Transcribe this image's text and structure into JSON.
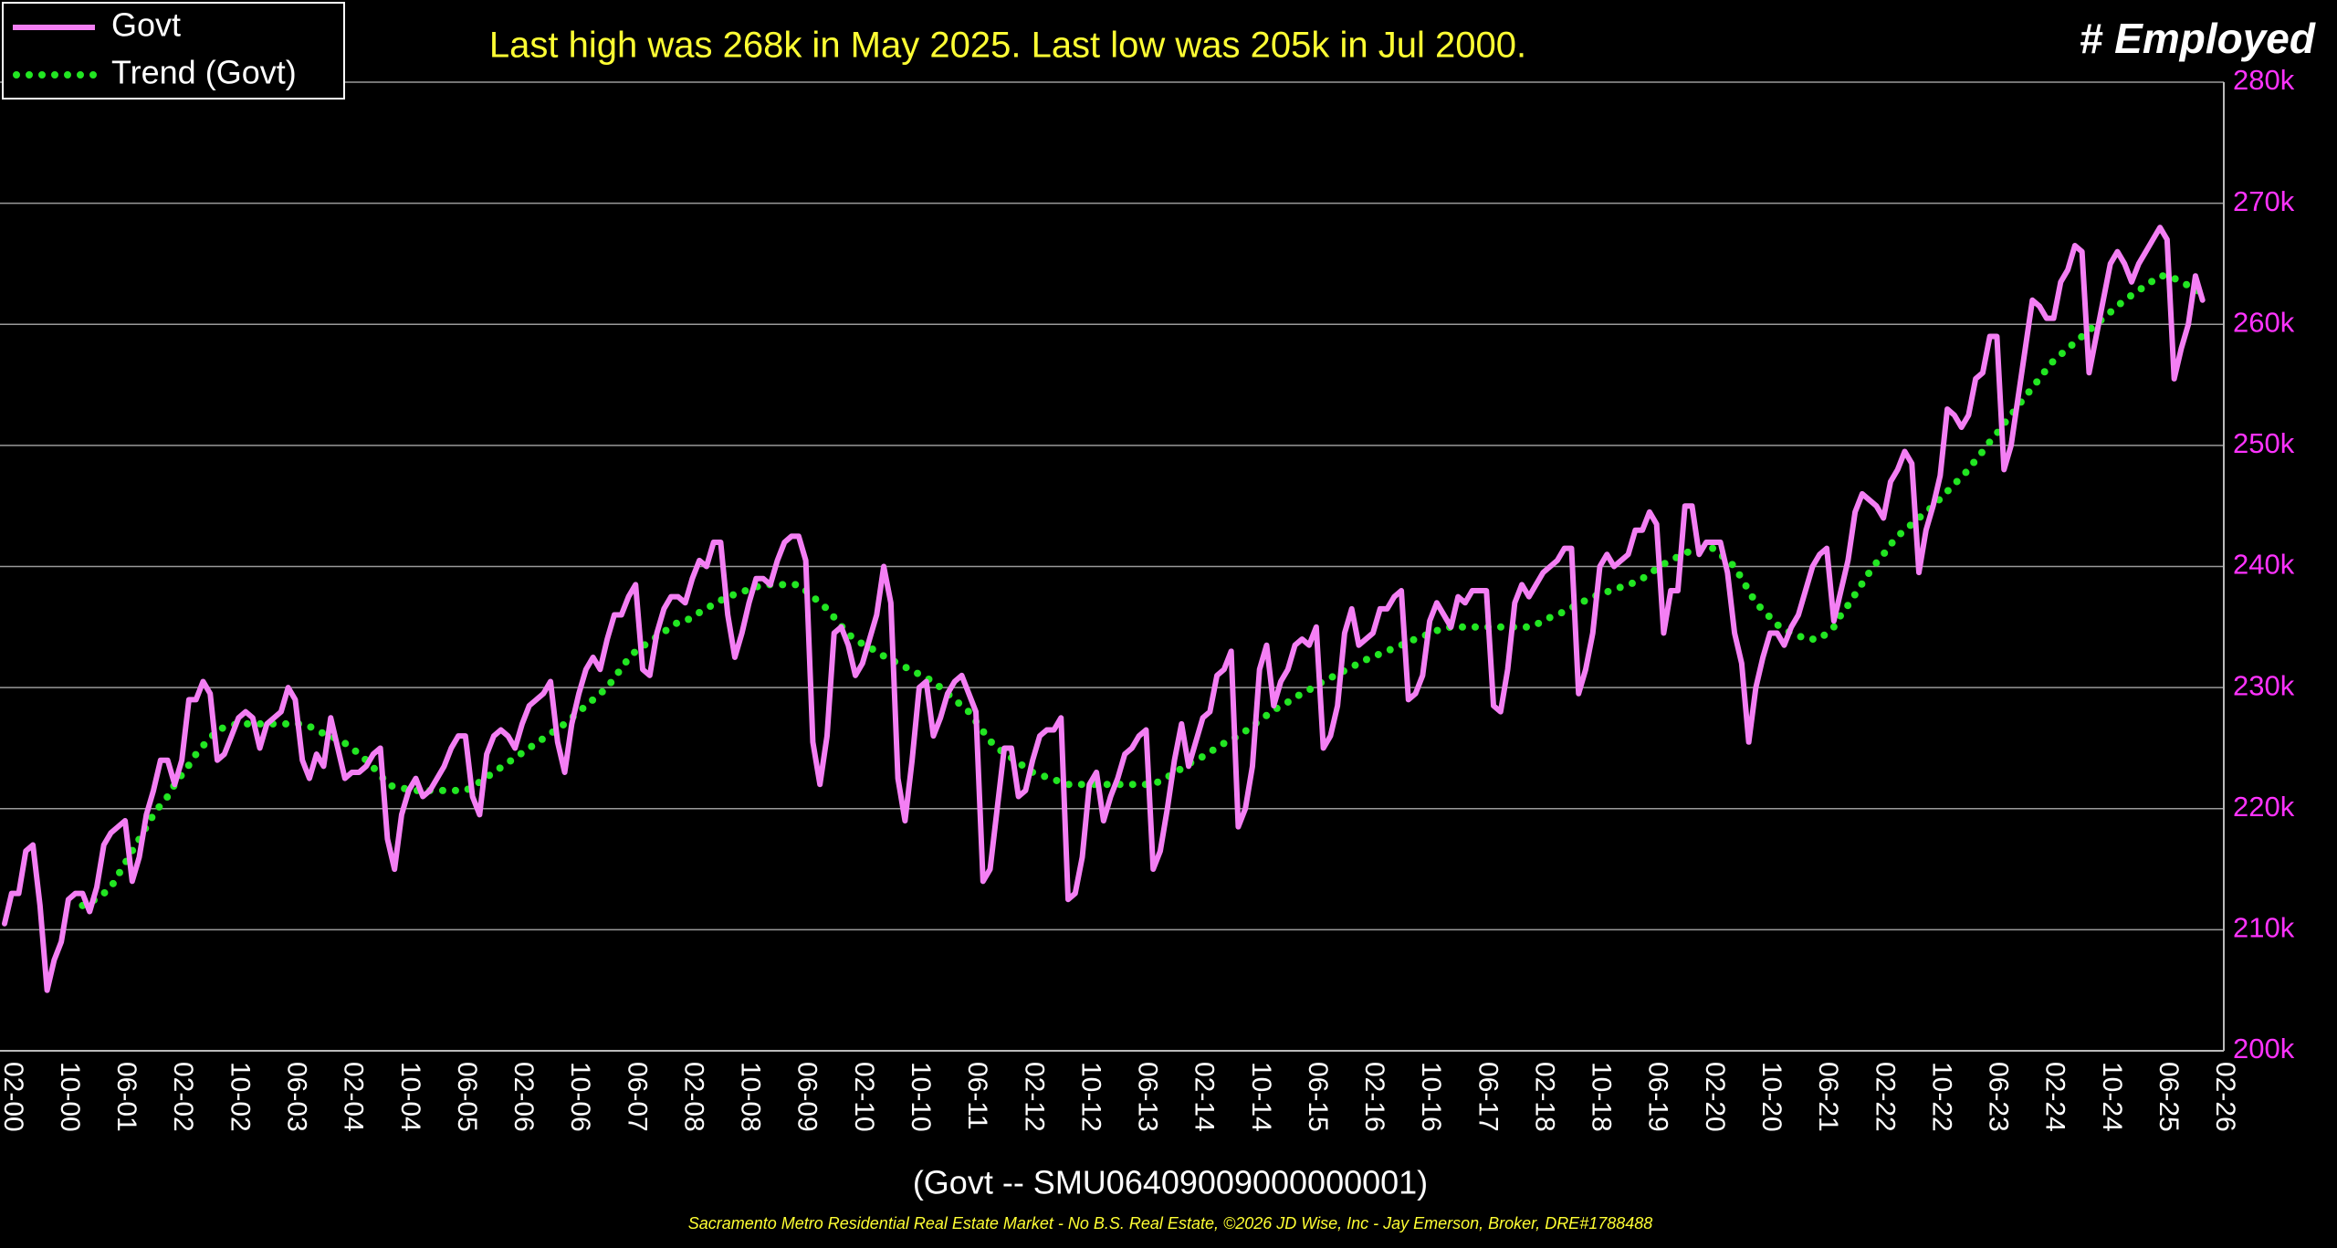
{
  "chart_data": {
    "type": "line",
    "title": "Last high was 268k in May 2025. Last low was 205k in Jul 2000.",
    "corner_title": "# Employed",
    "x_label": "(Govt -- SMU06409009000000001)",
    "footer": "Sacramento Metro Residential Real Estate Market - No B.S. Real Estate, ©2026 JD Wise, Inc - Jay Emerson, Broker, DRE#1788488",
    "categories": [
      "01-00",
      "02-00",
      "03-00",
      "04-00",
      "05-00",
      "06-00",
      "07-00",
      "08-00",
      "09-00",
      "10-00",
      "11-00",
      "12-00",
      "01-01",
      "02-01",
      "03-01",
      "04-01",
      "05-01",
      "06-01",
      "07-01",
      "08-01",
      "09-01",
      "10-01",
      "11-01",
      "12-01",
      "01-02",
      "02-02",
      "03-02",
      "04-02",
      "05-02",
      "06-02",
      "07-02",
      "08-02",
      "09-02",
      "10-02",
      "11-02",
      "12-02",
      "01-03",
      "02-03",
      "03-03",
      "04-03",
      "05-03",
      "06-03",
      "07-03",
      "08-03",
      "09-03",
      "10-03",
      "11-03",
      "12-03",
      "01-04",
      "02-04",
      "03-04",
      "04-04",
      "05-04",
      "06-04",
      "07-04",
      "08-04",
      "09-04",
      "10-04",
      "11-04",
      "12-04",
      "01-05",
      "02-05",
      "03-05",
      "04-05",
      "05-05",
      "06-05",
      "07-05",
      "08-05",
      "09-05",
      "10-05",
      "11-05",
      "12-05",
      "01-06",
      "02-06",
      "03-06",
      "04-06",
      "05-06",
      "06-06",
      "07-06",
      "08-06",
      "09-06",
      "10-06",
      "11-06",
      "12-06",
      "01-07",
      "02-07",
      "03-07",
      "04-07",
      "05-07",
      "06-07",
      "07-07",
      "08-07",
      "09-07",
      "10-07",
      "11-07",
      "12-07",
      "01-08",
      "02-08",
      "03-08",
      "04-08",
      "05-08",
      "06-08",
      "07-08",
      "08-08",
      "09-08",
      "10-08",
      "11-08",
      "12-08",
      "01-09",
      "02-09",
      "03-09",
      "04-09",
      "05-09",
      "06-09",
      "07-09",
      "08-09",
      "09-09",
      "10-09",
      "11-09",
      "12-09",
      "01-10",
      "02-10",
      "03-10",
      "04-10",
      "05-10",
      "06-10",
      "07-10",
      "08-10",
      "09-10",
      "10-10",
      "11-10",
      "12-10",
      "01-11",
      "02-11",
      "03-11",
      "04-11",
      "05-11",
      "06-11",
      "07-11",
      "08-11",
      "09-11",
      "10-11",
      "11-11",
      "12-11",
      "01-12",
      "02-12",
      "03-12",
      "04-12",
      "05-12",
      "06-12",
      "07-12",
      "08-12",
      "09-12",
      "10-12",
      "11-12",
      "12-12",
      "01-13",
      "02-13",
      "03-13",
      "04-13",
      "05-13",
      "06-13",
      "07-13",
      "08-13",
      "09-13",
      "10-13",
      "11-13",
      "12-13",
      "01-14",
      "02-14",
      "03-14",
      "04-14",
      "05-14",
      "06-14",
      "07-14",
      "08-14",
      "09-14",
      "10-14",
      "11-14",
      "12-14",
      "01-15",
      "02-15",
      "03-15",
      "04-15",
      "05-15",
      "06-15",
      "07-15",
      "08-15",
      "09-15",
      "10-15",
      "11-15",
      "12-15",
      "01-16",
      "02-16",
      "03-16",
      "04-16",
      "05-16",
      "06-16",
      "07-16",
      "08-16",
      "09-16",
      "10-16",
      "11-16",
      "12-16",
      "01-17",
      "02-17",
      "03-17",
      "04-17",
      "05-17",
      "06-17",
      "07-17",
      "08-17",
      "09-17",
      "10-17",
      "11-17",
      "12-17",
      "01-18",
      "02-18",
      "03-18",
      "04-18",
      "05-18",
      "06-18",
      "07-18",
      "08-18",
      "09-18",
      "10-18",
      "11-18",
      "12-18",
      "01-19",
      "02-19",
      "03-19",
      "04-19",
      "05-19",
      "06-19",
      "07-19",
      "08-19",
      "09-19",
      "10-19",
      "11-19",
      "12-19",
      "01-20",
      "02-20",
      "03-20",
      "04-20",
      "05-20",
      "06-20",
      "07-20",
      "08-20",
      "09-20",
      "10-20",
      "11-20",
      "12-20",
      "01-21",
      "02-21",
      "03-21",
      "04-21",
      "05-21",
      "06-21",
      "07-21",
      "08-21",
      "09-21",
      "10-21",
      "11-21",
      "12-21",
      "01-22",
      "02-22",
      "03-22",
      "04-22",
      "05-22",
      "06-22",
      "07-22",
      "08-22",
      "09-22",
      "10-22",
      "11-22",
      "12-22",
      "01-23",
      "02-23",
      "03-23",
      "04-23",
      "05-23",
      "06-23",
      "07-23",
      "08-23",
      "09-23",
      "10-23",
      "11-23",
      "12-23",
      "01-24",
      "02-24",
      "03-24",
      "04-24",
      "05-24",
      "06-24",
      "07-24",
      "08-24",
      "09-24",
      "10-24",
      "11-24",
      "12-24",
      "01-25",
      "02-25",
      "03-25",
      "04-25",
      "05-25",
      "06-25",
      "07-25",
      "08-25",
      "09-25",
      "10-25",
      "11-25",
      "12-25",
      "01-26",
      "02-26"
    ],
    "series": [
      {
        "name": "Govt",
        "color": "#f47ff4",
        "style": "solid",
        "values": [
          210.5,
          213,
          213,
          216.5,
          217,
          212,
          205,
          207.5,
          209,
          212.5,
          213,
          213,
          211.5,
          213.5,
          217,
          218,
          218.5,
          219,
          214,
          216,
          219.5,
          221.5,
          224,
          224,
          222,
          224,
          229,
          229,
          230.5,
          229.5,
          224,
          224.5,
          226,
          227.5,
          228,
          227.5,
          225,
          227,
          227.5,
          228,
          230,
          229,
          224,
          222.5,
          224.5,
          223.5,
          227.5,
          225,
          222.5,
          223,
          223,
          223.5,
          224.5,
          225,
          217.5,
          215,
          219.5,
          221.5,
          222.5,
          221,
          221.5,
          222.5,
          223.5,
          225,
          226,
          226,
          221,
          219.5,
          224.5,
          226,
          226.5,
          226,
          225,
          227,
          228.5,
          229,
          229.5,
          230.5,
          225.5,
          223,
          227,
          229.5,
          231.5,
          232.5,
          231.5,
          234,
          236,
          236,
          237.5,
          238.5,
          231.5,
          231,
          234.5,
          236.5,
          237.5,
          237.5,
          237,
          239,
          240.5,
          240,
          242,
          242,
          236,
          232.5,
          234.5,
          237,
          239,
          239,
          238.5,
          240.5,
          242,
          242.5,
          242.5,
          240.5,
          225.5,
          222,
          226,
          234.5,
          235,
          233.5,
          231,
          232,
          234,
          236,
          240,
          237,
          222.5,
          219,
          224,
          230,
          230.5,
          226,
          227.5,
          229.5,
          230.5,
          231,
          229.5,
          228,
          214,
          215,
          220,
          225,
          225,
          221,
          221.5,
          224,
          226,
          226.5,
          226.5,
          227.5,
          212.5,
          213,
          216,
          222,
          223,
          219,
          221,
          222.5,
          224.5,
          225,
          226,
          226.5,
          215,
          216.5,
          220,
          224,
          227,
          223.5,
          225.5,
          227.5,
          228,
          231,
          231.5,
          233,
          218.5,
          220,
          223.5,
          231.5,
          233.5,
          228.5,
          230.5,
          231.5,
          233.5,
          234,
          233.5,
          235,
          225,
          226,
          228.5,
          234.5,
          236.5,
          233.5,
          234,
          234.5,
          236.5,
          236.5,
          237.5,
          238,
          229,
          229.5,
          231,
          235.5,
          237,
          236,
          235,
          237.5,
          237,
          238,
          238,
          238,
          228.5,
          228,
          231.5,
          237,
          238.5,
          237.5,
          238.5,
          239.5,
          240,
          240.5,
          241.5,
          241.5,
          229.5,
          231.5,
          234.5,
          240,
          241,
          240,
          240.5,
          241,
          243,
          243,
          244.5,
          243.5,
          234.5,
          238,
          238,
          245,
          245,
          241,
          242,
          242,
          242,
          239.5,
          234.5,
          232,
          225.5,
          230,
          232.5,
          234.5,
          234.5,
          233.5,
          235,
          236,
          238,
          240,
          241,
          241.5,
          235.5,
          238,
          240.5,
          244.5,
          246,
          245.5,
          245,
          244,
          247,
          248,
          249.5,
          248.5,
          239.5,
          243,
          245,
          247.5,
          253,
          252.5,
          251.5,
          252.5,
          255.5,
          256,
          259,
          259,
          248,
          250,
          254,
          258,
          262,
          261.5,
          260.5,
          260.5,
          263.5,
          264.5,
          266.5,
          266,
          256,
          259,
          262,
          265,
          266,
          265,
          263.5,
          265,
          266,
          267,
          268,
          267,
          255.5,
          258,
          260,
          264,
          262,
          null,
          null,
          null
        ]
      },
      {
        "name": "Trend (Govt)",
        "color": "#22e622",
        "style": "dotted",
        "values": [
          null,
          null,
          null,
          null,
          null,
          null,
          null,
          null,
          null,
          null,
          null,
          212,
          212.2,
          212.6,
          213,
          213.5,
          214.5,
          215.5,
          216.5,
          217.5,
          218.5,
          219.5,
          220.3,
          221,
          222,
          222.8,
          223.6,
          224.5,
          225.2,
          225.8,
          226.5,
          226.7,
          226.9,
          227,
          227,
          227,
          227,
          227,
          227,
          227,
          227,
          227,
          227,
          226.8,
          226.5,
          226.2,
          226,
          225.7,
          225.4,
          225,
          224.5,
          224,
          223.4,
          222.8,
          222,
          221.8,
          221.7,
          221.6,
          221.5,
          221.5,
          221.5,
          221.5,
          221.5,
          221.5,
          221.5,
          221.5,
          221.8,
          222.2,
          222.6,
          223,
          223.4,
          223.8,
          224.2,
          224.6,
          225,
          225.4,
          225.8,
          226.2,
          226.6,
          227,
          227.5,
          228,
          228.5,
          229,
          229.5,
          230,
          230.8,
          231.6,
          232.4,
          233,
          233.4,
          233.8,
          234.2,
          234.6,
          235,
          235.4,
          235.5,
          235.8,
          236.2,
          236.5,
          236.9,
          237.2,
          237.5,
          237.7,
          237.9,
          238.1,
          238.3,
          238.5,
          238.5,
          238.5,
          238.5,
          238.5,
          238.5,
          238,
          237.5,
          237,
          236.5,
          235.8,
          235.1,
          234.4,
          234,
          233.6,
          233.3,
          233,
          232.6,
          232.3,
          232,
          231.7,
          231.4,
          231.1,
          230.8,
          230.5,
          230,
          229.5,
          229,
          228.5,
          228,
          227.2,
          226.4,
          225.6,
          225,
          224.6,
          224.2,
          223.8,
          223.4,
          223,
          222.8,
          222.6,
          222.4,
          222.2,
          222,
          222,
          222,
          222,
          222,
          222,
          222,
          222,
          222,
          222,
          222,
          222,
          222,
          222.3,
          222.6,
          223,
          223.3,
          223.7,
          224,
          224.3,
          224.7,
          225,
          225.4,
          225.7,
          226,
          226.4,
          226.8,
          227.3,
          227.7,
          228.1,
          228.5,
          228.8,
          229.2,
          229.5,
          229.8,
          230.2,
          230.5,
          230.8,
          231.1,
          231.4,
          231.7,
          232,
          232.3,
          232.5,
          232.8,
          233,
          233.3,
          233.5,
          233.8,
          234,
          234.2,
          234.5,
          234.7,
          234.9,
          235,
          235,
          235,
          235,
          235,
          235,
          235,
          235,
          235,
          235,
          235,
          235,
          235.2,
          235.5,
          235.8,
          236,
          236.3,
          236.6,
          236.9,
          237.2,
          237.5,
          237.7,
          237.9,
          238.1,
          238.3,
          238.5,
          238.7,
          239,
          239.4,
          239.8,
          240.2,
          240.5,
          240.8,
          241.1,
          241.3,
          241.5,
          241.5,
          241.5,
          241,
          240.5,
          240,
          239,
          238,
          237,
          236.4,
          235.8,
          235.2,
          234.8,
          234.5,
          234.3,
          234,
          234,
          234,
          234.5,
          235,
          236,
          236.8,
          237.7,
          238.6,
          239.5,
          240.3,
          241,
          241.8,
          242.5,
          243,
          243.5,
          244,
          244.5,
          245,
          245.6,
          246.2,
          246.8,
          247.4,
          248,
          248.8,
          249.5,
          250.3,
          251,
          251.8,
          252.5,
          253.3,
          254,
          254.8,
          255.5,
          256.3,
          257,
          257.5,
          258,
          258.5,
          259,
          259.5,
          260,
          260.5,
          261,
          261.5,
          262,
          262.4,
          262.8,
          263.2,
          263.6,
          264,
          264,
          263.8,
          263.5,
          263.2,
          262.9,
          262.5,
          null,
          null,
          null
        ]
      }
    ],
    "xticks": [
      "02-00",
      "10-00",
      "06-01",
      "02-02",
      "10-02",
      "06-03",
      "02-04",
      "10-04",
      "06-05",
      "02-06",
      "10-06",
      "06-07",
      "02-08",
      "10-08",
      "06-09",
      "02-10",
      "10-10",
      "06-11",
      "02-12",
      "10-12",
      "06-13",
      "02-14",
      "10-14",
      "06-15",
      "02-16",
      "10-16",
      "06-17",
      "02-18",
      "10-18",
      "06-19",
      "02-20",
      "10-20",
      "06-21",
      "02-22",
      "10-22",
      "06-23",
      "02-24",
      "10-24",
      "06-25",
      "02-26"
    ],
    "ylim": [
      200,
      280
    ],
    "yticks": [
      {
        "value": 200,
        "label": "200k"
      },
      {
        "value": 210,
        "label": "210k"
      },
      {
        "value": 220,
        "label": "220k"
      },
      {
        "value": 230,
        "label": "230k"
      },
      {
        "value": 240,
        "label": "240k"
      },
      {
        "value": 250,
        "label": "250k"
      },
      {
        "value": 260,
        "label": "260k"
      },
      {
        "value": 270,
        "label": "270k"
      },
      {
        "value": 280,
        "label": "280k"
      }
    ],
    "y_axis_side": "right",
    "grid": true,
    "legend": "top-left"
  }
}
